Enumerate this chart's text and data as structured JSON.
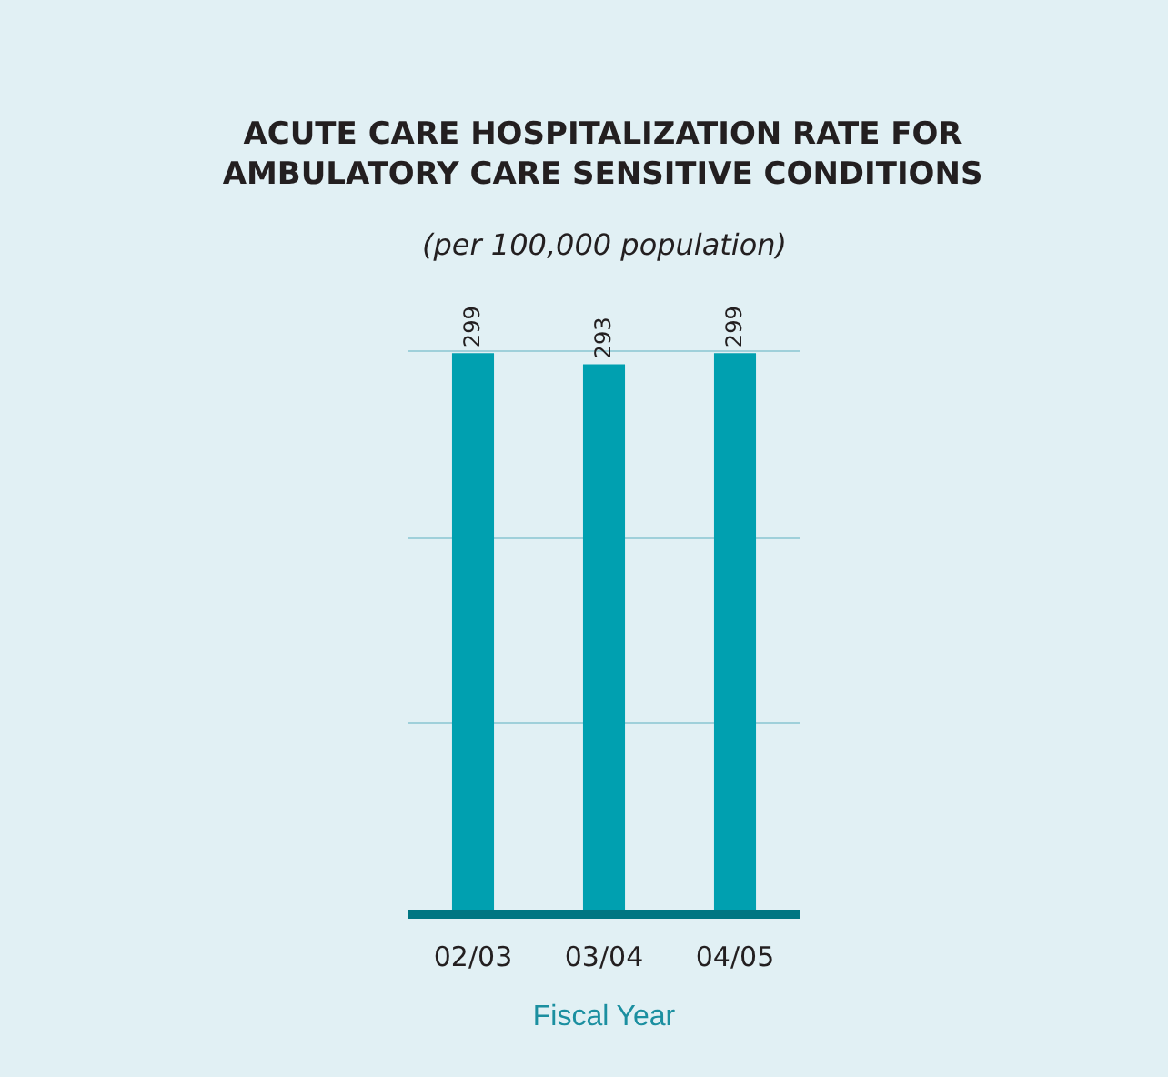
{
  "chart_data": {
    "type": "bar",
    "title": "ACUTE CARE HOSPITALIZATION RATE FOR AMBULATORY CARE SENSITIVE CONDITIONS",
    "subtitle": "(per 100,000 population)",
    "xlabel": "Fiscal Year",
    "categories": [
      "02/03",
      "03/04",
      "04/05"
    ],
    "values": [
      299,
      293,
      299
    ],
    "color": "#00a0b0",
    "data_labels": true,
    "ylim": [
      0,
      303
    ],
    "yticks": [
      {
        "value": 100,
        "label": null
      },
      {
        "value": 200,
        "label": null
      },
      {
        "value": 300,
        "label": null
      }
    ],
    "grid": "y",
    "tick_labels": "x"
  }
}
